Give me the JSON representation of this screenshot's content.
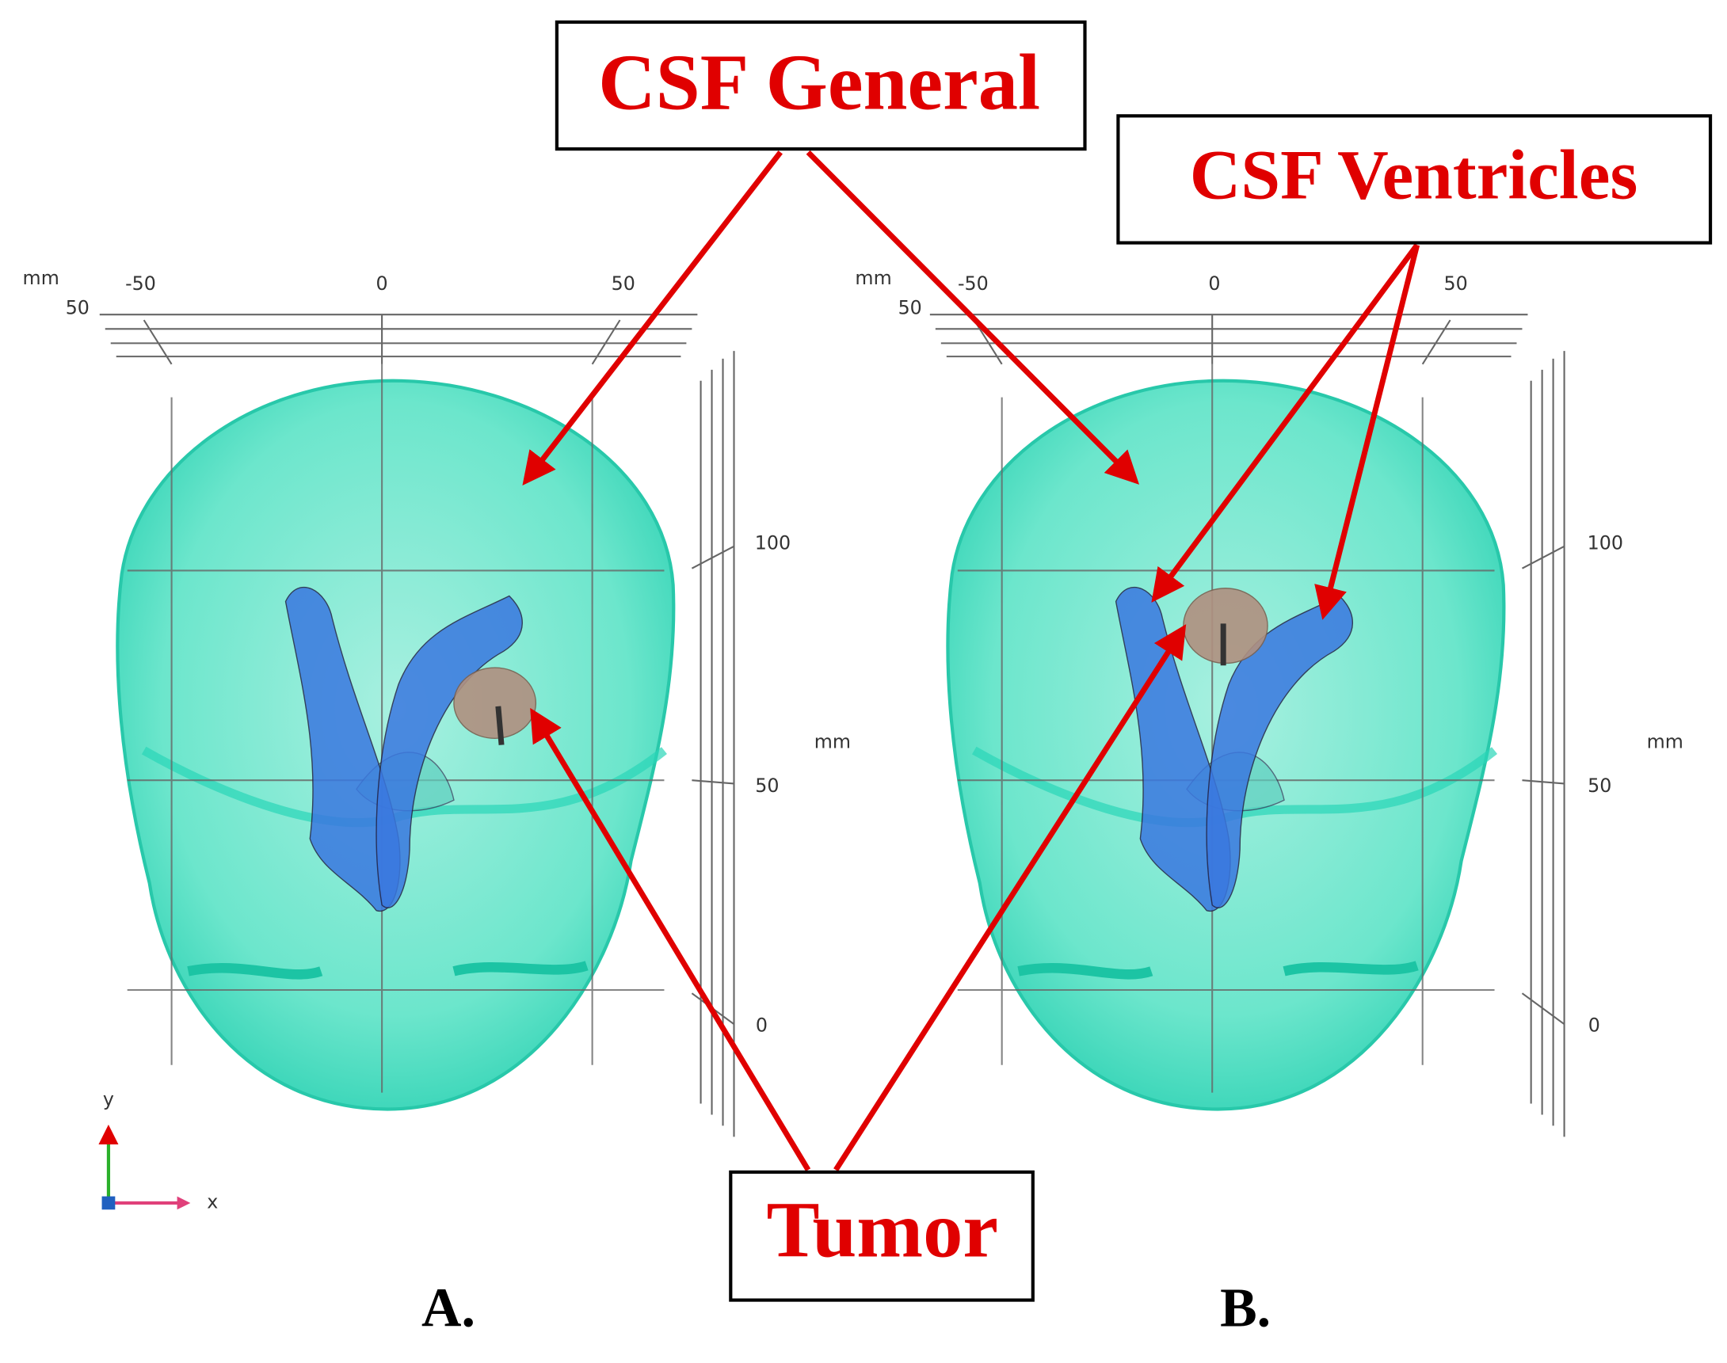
{
  "labels": {
    "csf_general": "CSF General",
    "csf_ventricles": "CSF Ventricles",
    "tumor": "Tumor"
  },
  "panels": [
    {
      "label": "A.",
      "x_unit": "mm",
      "x_ticks": [
        "-50",
        "0",
        "50"
      ],
      "z_tick": "50",
      "y_unit": "mm",
      "y_ticks": [
        "100",
        "50",
        "0"
      ]
    },
    {
      "label": "B.",
      "x_unit": "mm",
      "x_ticks": [
        "-50",
        "0",
        "50"
      ],
      "z_tick": "50",
      "y_unit": "mm",
      "y_ticks": [
        "100",
        "50",
        "0"
      ]
    }
  ],
  "triad": {
    "y": "y",
    "x": "x"
  }
}
